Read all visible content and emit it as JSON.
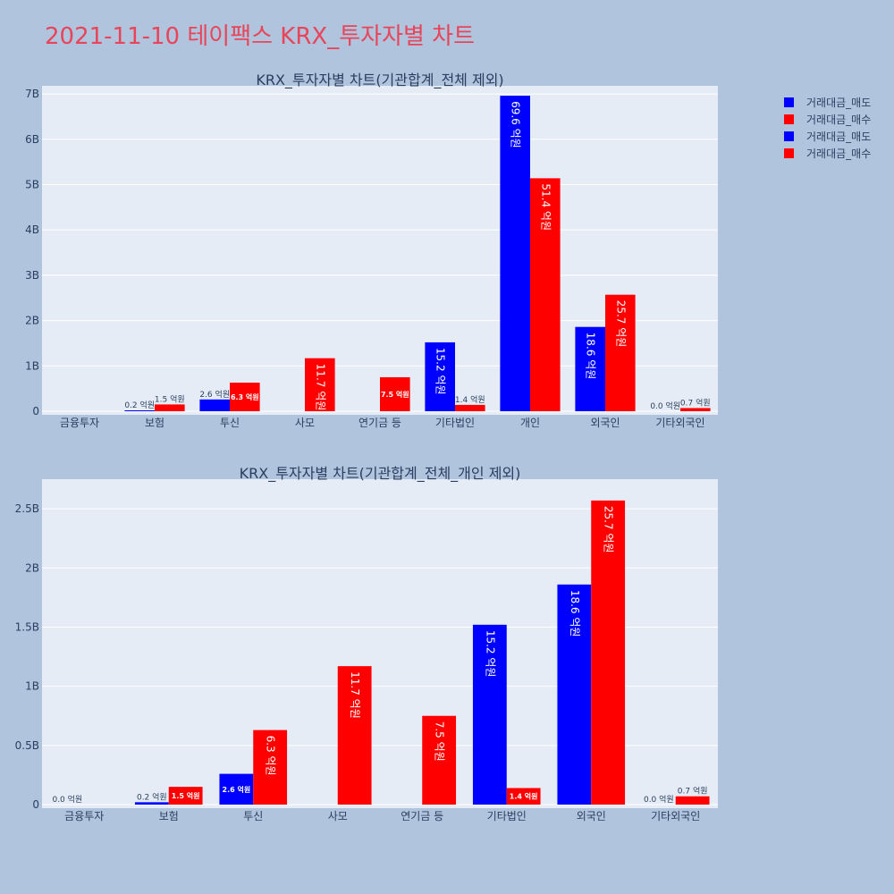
{
  "page": {
    "title": "2021-11-10 테이팩스 KRX_투자자별 차트"
  },
  "colors": {
    "background": "#b0c4de",
    "plot_bg": "#e5ecf6",
    "sell": "#0000ff",
    "buy": "#ff0000",
    "title": "#e8455a",
    "text": "#2a3f5f"
  },
  "legend": {
    "position": "top-right",
    "items": [
      {
        "label": "거래대금_매도",
        "color": "#0000ff"
      },
      {
        "label": "거래대금_매수",
        "color": "#ff0000"
      },
      {
        "label": "거래대금_매도",
        "color": "#0000ff"
      },
      {
        "label": "거래대금_매수",
        "color": "#ff0000"
      }
    ]
  },
  "chart_data": [
    {
      "type": "bar",
      "title": "KRX_투자자별 차트(기관합계_전체 제외)",
      "categories": [
        "금융투자",
        "보험",
        "투신",
        "사모",
        "연기금 등",
        "기타법인",
        "개인",
        "외국인",
        "기타외국인"
      ],
      "ylim": [
        0,
        7.1
      ],
      "yticks": [
        0,
        1,
        2,
        3,
        4,
        5,
        6,
        7
      ],
      "ytick_labels": [
        "0",
        "1B",
        "2B",
        "3B",
        "4B",
        "5B",
        "6B",
        "7B"
      ],
      "grid": true,
      "series": [
        {
          "name": "거래대금_매도",
          "color": "#0000ff",
          "values": [
            0,
            0.02,
            0.26,
            0,
            0,
            1.52,
            6.96,
            1.86,
            0
          ],
          "labels": [
            "",
            "0.2 억원",
            "2.6 억원",
            "",
            "",
            "15.2 억원",
            "69.6 억원",
            "18.6 억원",
            "0.0 억원"
          ]
        },
        {
          "name": "거래대금_매수",
          "color": "#ff0000",
          "values": [
            0,
            0.15,
            0.63,
            1.17,
            0.75,
            0.14,
            5.14,
            2.57,
            0.07
          ],
          "labels": [
            "",
            "1.5 억원",
            "6.3 억원",
            "11.7 억원",
            "7.5 억원",
            "1.4 억원",
            "51.4 억원",
            "25.7 억원",
            "0.7 억원"
          ]
        }
      ]
    },
    {
      "type": "bar",
      "title": "KRX_투자자별 차트(기관합계_전체_개인 제외)",
      "categories": [
        "금융투자",
        "보험",
        "투신",
        "사모",
        "연기금 등",
        "기타법인",
        "외국인",
        "기타외국인"
      ],
      "ylim": [
        0,
        2.72
      ],
      "yticks": [
        0,
        0.5,
        1,
        1.5,
        2,
        2.5
      ],
      "ytick_labels": [
        "0",
        "0.5B",
        "1B",
        "1.5B",
        "2B",
        "2.5B"
      ],
      "grid": true,
      "series": [
        {
          "name": "거래대금_매도",
          "color": "#0000ff",
          "values": [
            0,
            0.02,
            0.26,
            0,
            0,
            1.52,
            1.86,
            0
          ],
          "labels": [
            "0.0 억원",
            "0.2 억원",
            "2.6 억원",
            "",
            "",
            "15.2 억원",
            "18.6 억원",
            "0.0 억원"
          ]
        },
        {
          "name": "거래대금_매수",
          "color": "#ff0000",
          "values": [
            0,
            0.15,
            0.63,
            1.17,
            0.75,
            0.14,
            2.57,
            0.07
          ],
          "labels": [
            "",
            "1.5 억원",
            "6.3 억원",
            "11.7 억원",
            "7.5 억원",
            "1.4 억원",
            "25.7 억원",
            "0.7 억원"
          ]
        }
      ]
    }
  ]
}
